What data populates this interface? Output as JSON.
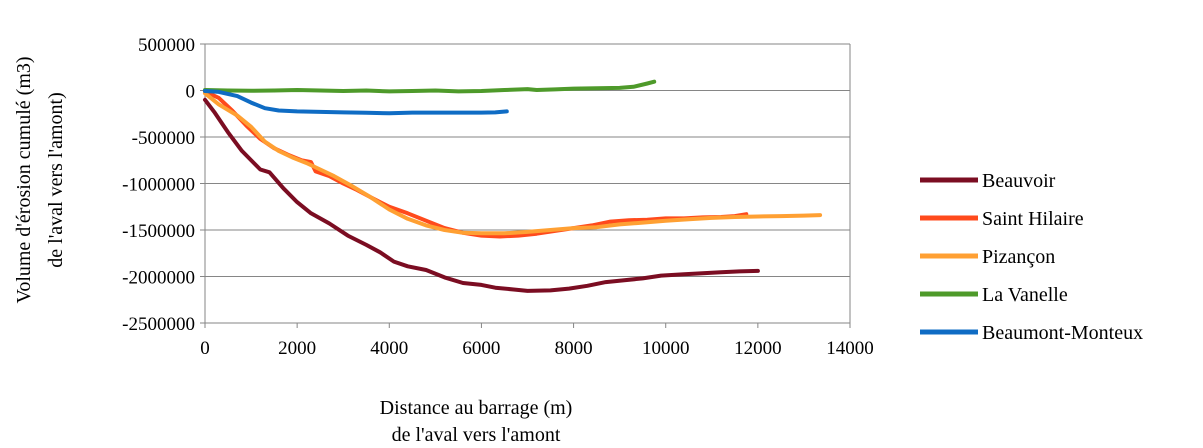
{
  "chart_data": {
    "type": "line",
    "xlabel": [
      "Distance au barrage (m)",
      "de l'aval vers l'amont"
    ],
    "ylabel": [
      "Volume d'érosion cumulé (m3)",
      "de l'aval vers l'amont)"
    ],
    "xlim": [
      0,
      14000
    ],
    "ylim": [
      -2500000,
      500000
    ],
    "x_ticks": [
      "0",
      "2000",
      "4000",
      "6000",
      "8000",
      "10000",
      "12000",
      "14000"
    ],
    "y_ticks": [
      "500000",
      "0",
      "-500000",
      "-1000000",
      "-1500000",
      "-2000000",
      "-2500000"
    ],
    "grid": "horizontal",
    "legend": "right",
    "series": [
      {
        "name": "Beauvoir",
        "color": "#7B0D22",
        "points": [
          [
            0,
            -100000
          ],
          [
            200,
            -230000
          ],
          [
            500,
            -450000
          ],
          [
            800,
            -650000
          ],
          [
            1100,
            -800000
          ],
          [
            1200,
            -850000
          ],
          [
            1400,
            -880000
          ],
          [
            1700,
            -1050000
          ],
          [
            2000,
            -1200000
          ],
          [
            2300,
            -1320000
          ],
          [
            2700,
            -1430000
          ],
          [
            3100,
            -1560000
          ],
          [
            3500,
            -1660000
          ],
          [
            3800,
            -1740000
          ],
          [
            4100,
            -1840000
          ],
          [
            4400,
            -1890000
          ],
          [
            4800,
            -1930000
          ],
          [
            5200,
            -2010000
          ],
          [
            5600,
            -2070000
          ],
          [
            6000,
            -2090000
          ],
          [
            6300,
            -2120000
          ],
          [
            6700,
            -2140000
          ],
          [
            7000,
            -2155000
          ],
          [
            7500,
            -2150000
          ],
          [
            7900,
            -2130000
          ],
          [
            8300,
            -2100000
          ],
          [
            8700,
            -2060000
          ],
          [
            9100,
            -2040000
          ],
          [
            9500,
            -2020000
          ],
          [
            9900,
            -1990000
          ],
          [
            10400,
            -1975000
          ],
          [
            10800,
            -1965000
          ],
          [
            11200,
            -1955000
          ],
          [
            11600,
            -1945000
          ],
          [
            12000,
            -1940000
          ]
        ]
      },
      {
        "name": "Saint Hilaire",
        "color": "#FF4A1C",
        "points": [
          [
            0,
            -10000
          ],
          [
            300,
            -80000
          ],
          [
            600,
            -220000
          ],
          [
            900,
            -380000
          ],
          [
            1200,
            -520000
          ],
          [
            1500,
            -620000
          ],
          [
            1800,
            -690000
          ],
          [
            2100,
            -750000
          ],
          [
            2300,
            -770000
          ],
          [
            2400,
            -870000
          ],
          [
            2700,
            -920000
          ],
          [
            3000,
            -1000000
          ],
          [
            3300,
            -1070000
          ],
          [
            3600,
            -1150000
          ],
          [
            4000,
            -1250000
          ],
          [
            4400,
            -1320000
          ],
          [
            4800,
            -1400000
          ],
          [
            5200,
            -1480000
          ],
          [
            5600,
            -1530000
          ],
          [
            6000,
            -1560000
          ],
          [
            6400,
            -1570000
          ],
          [
            6800,
            -1560000
          ],
          [
            7200,
            -1540000
          ],
          [
            7600,
            -1510000
          ],
          [
            8000,
            -1480000
          ],
          [
            8400,
            -1450000
          ],
          [
            8800,
            -1410000
          ],
          [
            9200,
            -1395000
          ],
          [
            9600,
            -1390000
          ],
          [
            10000,
            -1375000
          ],
          [
            10400,
            -1375000
          ],
          [
            10800,
            -1365000
          ],
          [
            11200,
            -1360000
          ],
          [
            11500,
            -1350000
          ],
          [
            11750,
            -1330000
          ]
        ]
      },
      {
        "name": "Pizançon",
        "color": "#FFA033",
        "points": [
          [
            0,
            -30000
          ],
          [
            300,
            -150000
          ],
          [
            700,
            -270000
          ],
          [
            1000,
            -390000
          ],
          [
            1300,
            -550000
          ],
          [
            1600,
            -650000
          ],
          [
            1900,
            -720000
          ],
          [
            2200,
            -780000
          ],
          [
            2500,
            -850000
          ],
          [
            2800,
            -920000
          ],
          [
            3200,
            -1030000
          ],
          [
            3600,
            -1150000
          ],
          [
            4000,
            -1280000
          ],
          [
            4400,
            -1380000
          ],
          [
            4800,
            -1450000
          ],
          [
            5200,
            -1500000
          ],
          [
            5600,
            -1530000
          ],
          [
            6000,
            -1535000
          ],
          [
            6500,
            -1535000
          ],
          [
            7000,
            -1520000
          ],
          [
            7500,
            -1500000
          ],
          [
            8000,
            -1480000
          ],
          [
            8500,
            -1470000
          ],
          [
            9000,
            -1440000
          ],
          [
            9500,
            -1420000
          ],
          [
            10000,
            -1400000
          ],
          [
            10500,
            -1385000
          ],
          [
            11000,
            -1370000
          ],
          [
            11500,
            -1360000
          ],
          [
            12000,
            -1355000
          ],
          [
            12500,
            -1350000
          ],
          [
            13000,
            -1345000
          ],
          [
            13350,
            -1340000
          ]
        ]
      },
      {
        "name": "La Vanelle",
        "color": "#4E9A2A",
        "points": [
          [
            0,
            5000
          ],
          [
            500,
            0
          ],
          [
            1000,
            -3000
          ],
          [
            1500,
            0
          ],
          [
            2000,
            5000
          ],
          [
            2500,
            0
          ],
          [
            3000,
            -5000
          ],
          [
            3500,
            0
          ],
          [
            4000,
            -10000
          ],
          [
            4500,
            -5000
          ],
          [
            5000,
            0
          ],
          [
            5500,
            -10000
          ],
          [
            6000,
            -5000
          ],
          [
            6500,
            5000
          ],
          [
            7000,
            15000
          ],
          [
            7200,
            5000
          ],
          [
            7600,
            12000
          ],
          [
            8000,
            20000
          ],
          [
            8500,
            25000
          ],
          [
            9000,
            28000
          ],
          [
            9300,
            40000
          ],
          [
            9600,
            75000
          ],
          [
            9750,
            95000
          ]
        ]
      },
      {
        "name": "Beaumont-Monteux",
        "color": "#0F6CC4",
        "points": [
          [
            0,
            -5000
          ],
          [
            300,
            -15000
          ],
          [
            700,
            -60000
          ],
          [
            1000,
            -130000
          ],
          [
            1300,
            -190000
          ],
          [
            1600,
            -215000
          ],
          [
            2000,
            -225000
          ],
          [
            2500,
            -230000
          ],
          [
            3000,
            -235000
          ],
          [
            3500,
            -240000
          ],
          [
            4000,
            -245000
          ],
          [
            4500,
            -238000
          ],
          [
            5000,
            -238000
          ],
          [
            5500,
            -238000
          ],
          [
            6000,
            -238000
          ],
          [
            6300,
            -235000
          ],
          [
            6550,
            -225000
          ]
        ]
      }
    ]
  }
}
